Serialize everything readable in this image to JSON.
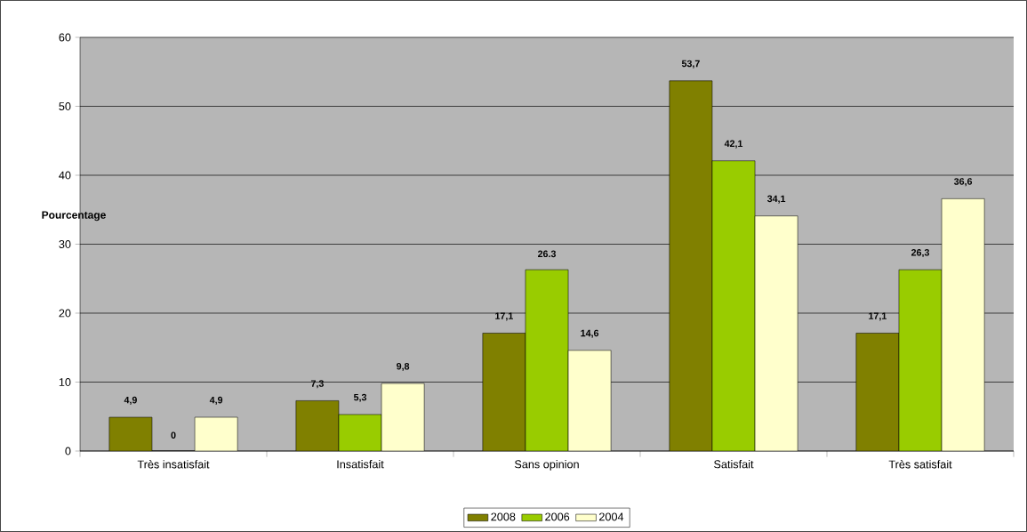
{
  "chart_data": {
    "type": "bar",
    "ylabel": "Pourcentage",
    "categories": [
      "Très insatisfait",
      "Insatisfait",
      "Sans opinion",
      "Satisfait",
      "Très satisfait"
    ],
    "series": [
      {
        "name": "2008",
        "color": "#808000",
        "values": [
          4.9,
          7.3,
          17.1,
          53.7,
          17.1
        ],
        "value_labels": [
          "4,9",
          "7,3",
          "17,1",
          "53,7",
          "17,1"
        ]
      },
      {
        "name": "2006",
        "color": "#99cc00",
        "values": [
          0,
          5.3,
          26.3,
          42.1,
          26.3
        ],
        "value_labels": [
          "0",
          "5,3",
          "26.3",
          "42,1",
          "26,3"
        ]
      },
      {
        "name": "2004",
        "color": "#ffffcc",
        "values": [
          4.9,
          9.8,
          14.6,
          34.1,
          36.6
        ],
        "value_labels": [
          "4,9",
          "9,8",
          "14,6",
          "34,1",
          "36,6"
        ]
      }
    ],
    "ylim": [
      0,
      60
    ],
    "yticks": [
      0,
      10,
      20,
      30,
      40,
      50,
      60
    ],
    "grid": "y",
    "legend": "bottom"
  }
}
